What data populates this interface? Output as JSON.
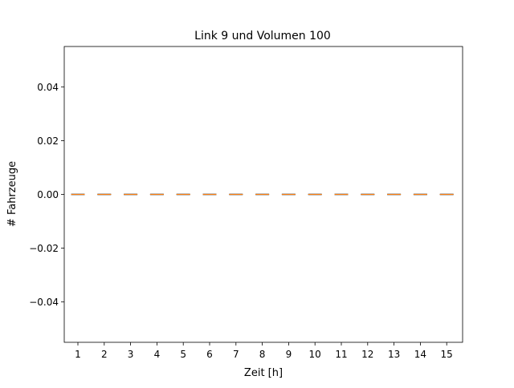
{
  "chart_data": {
    "type": "box",
    "title": "Link 9 und Volumen 100",
    "xlabel": "Zeit [h]",
    "ylabel": "# Fahrzeuge",
    "categories": [
      "1",
      "2",
      "3",
      "4",
      "5",
      "6",
      "7",
      "8",
      "9",
      "10",
      "11",
      "12",
      "13",
      "14",
      "15"
    ],
    "values": [
      0,
      0,
      0,
      0,
      0,
      0,
      0,
      0,
      0,
      0,
      0,
      0,
      0,
      0,
      0
    ],
    "ylim": [
      -0.055,
      0.055
    ],
    "yticks": [
      -0.04,
      -0.02,
      0.0,
      0.02,
      0.04
    ],
    "ytick_labels": [
      "−0.04",
      "−0.02",
      "0.00",
      "0.02",
      "0.04"
    ],
    "grid": false,
    "colors": {
      "box": "#1f77b4",
      "median": "#ff7f0e"
    }
  }
}
